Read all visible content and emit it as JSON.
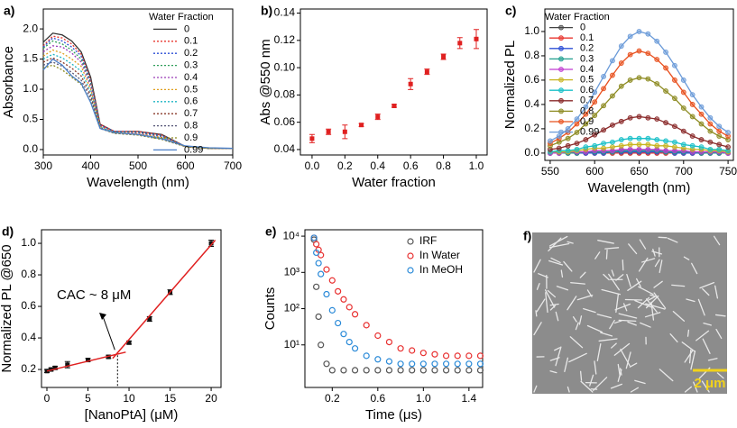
{
  "chart_data": [
    {
      "type": "line",
      "panel_label": "a)",
      "xlabel": "Wavelength (nm)",
      "ylabel": "Absorbance",
      "legend_title": "Water Fraction",
      "legend": "upper right",
      "xlim": [
        300,
        700
      ],
      "xticks": [
        300,
        400,
        500,
        600,
        700
      ],
      "ylim": [
        -0.09,
        2.33
      ],
      "yticks": [
        {
          "value": 0,
          "label": "0.0"
        },
        0.5,
        {
          "value": 1,
          "label": "1.0"
        },
        1.5,
        {
          "value": 2,
          "label": "2.0"
        }
      ],
      "x": [
        300,
        320,
        340,
        360,
        380,
        400,
        420,
        450,
        500,
        550,
        600,
        650,
        700
      ],
      "series": [
        {
          "name": "0",
          "color": "#333333",
          "dashed": false,
          "values": [
            1.78,
            1.93,
            1.9,
            1.8,
            1.62,
            1.2,
            0.42,
            0.3,
            0.3,
            0.25,
            0.05,
            0.02,
            0.02
          ]
        },
        {
          "name": "0.1",
          "color": "#e8352e",
          "dashed": true,
          "values": [
            1.72,
            1.88,
            1.85,
            1.75,
            1.58,
            1.15,
            0.42,
            0.3,
            0.3,
            0.24,
            0.05,
            0.02,
            0.02
          ]
        },
        {
          "name": "0.2",
          "color": "#2d4fd6",
          "dashed": true,
          "values": [
            1.7,
            1.85,
            1.8,
            1.7,
            1.55,
            1.12,
            0.4,
            0.3,
            0.29,
            0.23,
            0.05,
            0.02,
            0.02
          ]
        },
        {
          "name": "0.3",
          "color": "#2e9e5a",
          "dashed": true,
          "values": [
            1.68,
            1.8,
            1.75,
            1.65,
            1.5,
            1.1,
            0.4,
            0.29,
            0.28,
            0.22,
            0.05,
            0.02,
            0.02
          ]
        },
        {
          "name": "0.4",
          "color": "#9b3bb8",
          "dashed": true,
          "values": [
            1.62,
            1.72,
            1.7,
            1.6,
            1.45,
            1.05,
            0.4,
            0.28,
            0.27,
            0.21,
            0.05,
            0.02,
            0.02
          ]
        },
        {
          "name": "0.5",
          "color": "#e0a020",
          "dashed": true,
          "values": [
            1.55,
            1.65,
            1.6,
            1.5,
            1.38,
            1.0,
            0.38,
            0.28,
            0.26,
            0.2,
            0.05,
            0.02,
            0.02
          ]
        },
        {
          "name": "0.6",
          "color": "#1fb5c4",
          "dashed": true,
          "values": [
            1.5,
            1.58,
            1.52,
            1.42,
            1.3,
            0.95,
            0.37,
            0.28,
            0.25,
            0.19,
            0.05,
            0.02,
            0.02
          ]
        },
        {
          "name": "0.7",
          "color": "#8a3a2a",
          "dashed": true,
          "values": [
            1.45,
            1.52,
            1.45,
            1.35,
            1.22,
            0.9,
            0.36,
            0.27,
            0.25,
            0.18,
            0.05,
            0.02,
            0.02
          ]
        },
        {
          "name": "0.8",
          "color": "#555577",
          "dashed": true,
          "values": [
            1.4,
            1.45,
            1.38,
            1.28,
            1.15,
            0.85,
            0.35,
            0.27,
            0.24,
            0.17,
            0.05,
            0.02,
            0.02
          ]
        },
        {
          "name": "0.9",
          "color": "#8c8a20",
          "dashed": true,
          "values": [
            1.35,
            1.4,
            1.32,
            1.2,
            1.08,
            0.8,
            0.35,
            0.27,
            0.24,
            0.17,
            0.05,
            0.02,
            0.02
          ]
        },
        {
          "name": "0.99",
          "color": "#4a7fc8",
          "dashed": false,
          "values": [
            1.32,
            1.5,
            1.4,
            1.22,
            1.1,
            0.78,
            0.35,
            0.28,
            0.25,
            0.18,
            0.06,
            0.03,
            0.02
          ]
        }
      ]
    },
    {
      "type": "scatter",
      "panel_label": "b)",
      "xlabel": "Water fraction",
      "ylabel": "Abs @550 nm",
      "marker": "square",
      "xlim": [
        -0.071,
        1.066
      ],
      "xticks": [
        {
          "value": 0,
          "label": "0.0"
        },
        0.2,
        0.4,
        0.6,
        0.8,
        {
          "value": 1,
          "label": "1.0"
        }
      ],
      "ylim": [
        0.036,
        0.143
      ],
      "yticks": [
        0.04,
        0.06,
        0.08,
        {
          "value": 0.1,
          "label": "0.10"
        },
        0.12,
        0.14
      ],
      "series": [
        {
          "color": "#e02020",
          "x": [
            0,
            0.1,
            0.2,
            0.3,
            0.4,
            0.5,
            0.6,
            0.7,
            0.8,
            0.9,
            1.0
          ],
          "values": [
            0.048,
            0.053,
            0.053,
            0.058,
            0.064,
            0.072,
            0.088,
            0.097,
            0.108,
            0.118,
            0.121
          ],
          "errors": [
            0.003,
            0.002,
            0.005,
            0.001,
            0.002,
            0.001,
            0.004,
            0.002,
            0.002,
            0.004,
            0.007
          ]
        }
      ]
    },
    {
      "type": "line",
      "panel_label": "c)",
      "xlabel": "Wavelength (nm)",
      "ylabel": "Normalized PL",
      "legend_title": "Water Fraction",
      "legend": "upper left",
      "marker": "circle",
      "xlim": [
        544,
        756
      ],
      "xticks": [
        550,
        600,
        650,
        700,
        750
      ],
      "ylim": [
        -0.06,
        1.185
      ],
      "yticks": [
        {
          "value": 0,
          "label": "0.0"
        },
        0.2,
        0.4,
        0.6,
        0.8,
        {
          "value": 1,
          "label": "1.0"
        }
      ],
      "x": [
        550,
        560,
        570,
        580,
        590,
        600,
        610,
        620,
        630,
        640,
        650,
        660,
        670,
        680,
        690,
        700,
        710,
        720,
        730,
        740,
        750
      ],
      "series": [
        {
          "name": "0",
          "color": "#444444",
          "values": [
            0,
            0,
            0,
            0,
            0,
            0,
            0,
            0,
            0,
            0,
            0,
            0,
            0,
            0,
            0,
            0,
            0,
            0,
            0,
            0,
            0
          ]
        },
        {
          "name": "0.1",
          "color": "#e8352e",
          "values": [
            0,
            0,
            0,
            0,
            0,
            0,
            0,
            0,
            0,
            0,
            0,
            0,
            0,
            0,
            0,
            0,
            0,
            0,
            0,
            0,
            0
          ]
        },
        {
          "name": "0.2",
          "color": "#2d4fd6",
          "values": [
            0,
            0,
            0,
            0,
            0,
            0,
            0,
            0.01,
            0.01,
            0.01,
            0.01,
            0.01,
            0.01,
            0.01,
            0,
            0,
            0,
            0,
            0,
            0,
            0
          ]
        },
        {
          "name": "0.3",
          "color": "#1f9e8e",
          "values": [
            0,
            0,
            0,
            0,
            0.01,
            0.01,
            0.01,
            0.01,
            0.02,
            0.02,
            0.02,
            0.02,
            0.02,
            0.01,
            0.01,
            0.01,
            0.01,
            0,
            0,
            0,
            0
          ]
        },
        {
          "name": "0.4",
          "color": "#c03ad0",
          "values": [
            0,
            0,
            0.01,
            0.01,
            0.01,
            0.02,
            0.02,
            0.02,
            0.03,
            0.03,
            0.03,
            0.03,
            0.03,
            0.02,
            0.02,
            0.02,
            0.01,
            0.01,
            0.01,
            0.01,
            0
          ]
        },
        {
          "name": "0.5",
          "color": "#c7b420",
          "values": [
            0.01,
            0.01,
            0.01,
            0.02,
            0.03,
            0.04,
            0.04,
            0.05,
            0.06,
            0.07,
            0.07,
            0.07,
            0.06,
            0.06,
            0.05,
            0.04,
            0.03,
            0.03,
            0.02,
            0.02,
            0.01
          ]
        },
        {
          "name": "0.6",
          "color": "#19c0c8",
          "values": [
            0.01,
            0.02,
            0.02,
            0.03,
            0.05,
            0.06,
            0.08,
            0.09,
            0.11,
            0.12,
            0.12,
            0.12,
            0.11,
            0.1,
            0.09,
            0.07,
            0.06,
            0.05,
            0.03,
            0.03,
            0.02
          ]
        },
        {
          "name": "0.7",
          "color": "#8a2a2a",
          "values": [
            0.03,
            0.04,
            0.06,
            0.08,
            0.11,
            0.15,
            0.19,
            0.23,
            0.26,
            0.29,
            0.3,
            0.29,
            0.28,
            0.25,
            0.22,
            0.18,
            0.14,
            0.11,
            0.09,
            0.07,
            0.05
          ]
        },
        {
          "name": "0.8",
          "color": "#8c8a20",
          "values": [
            0.06,
            0.09,
            0.12,
            0.17,
            0.24,
            0.31,
            0.39,
            0.47,
            0.55,
            0.6,
            0.62,
            0.61,
            0.57,
            0.51,
            0.45,
            0.37,
            0.3,
            0.24,
            0.18,
            0.14,
            0.11
          ]
        },
        {
          "name": "0.9",
          "color": "#e8501e",
          "values": [
            0.08,
            0.12,
            0.17,
            0.24,
            0.32,
            0.42,
            0.53,
            0.64,
            0.74,
            0.81,
            0.84,
            0.82,
            0.77,
            0.7,
            0.6,
            0.5,
            0.4,
            0.32,
            0.24,
            0.18,
            0.14
          ]
        },
        {
          "name": "0.99",
          "color": "#6a9ad8",
          "values": [
            0.1,
            0.14,
            0.2,
            0.28,
            0.38,
            0.5,
            0.63,
            0.76,
            0.88,
            0.96,
            1.0,
            0.98,
            0.92,
            0.83,
            0.72,
            0.6,
            0.48,
            0.38,
            0.29,
            0.22,
            0.17
          ]
        }
      ]
    },
    {
      "type": "scatter",
      "panel_label": "d)",
      "xlabel": "[NanoPtA] (μM)",
      "ylabel": "Normalized PL @650",
      "marker": "square",
      "annotation": "CAC ~ 8 μM",
      "xlim": [
        -0.66,
        21.2
      ],
      "xticks": [
        0,
        5,
        10,
        15,
        20
      ],
      "ylim": [
        0.086,
        1.086
      ],
      "yticks": [
        0.2,
        0.4,
        0.6,
        0.8,
        {
          "value": 1,
          "label": "1.0"
        }
      ],
      "series": [
        {
          "color": "#111111",
          "x": [
            0,
            0.5,
            1,
            2.5,
            5,
            7.5,
            10,
            12.5,
            15,
            20
          ],
          "values": [
            0.19,
            0.2,
            0.21,
            0.23,
            0.26,
            0.28,
            0.37,
            0.52,
            0.69,
            1.0
          ],
          "errors": [
            0.01,
            0.01,
            0.01,
            0.02,
            0.01,
            0.01,
            0.01,
            0.015,
            0.015,
            0.02
          ]
        }
      ],
      "fit_lines": [
        {
          "color": "#e02020",
          "x": [
            0,
            9.6
          ],
          "y": [
            0.19,
            0.31
          ]
        },
        {
          "color": "#e02020",
          "x": [
            8,
            20.5
          ],
          "y": [
            0.27,
            1.02
          ]
        }
      ],
      "dropline": {
        "x": 8.6,
        "y": 0.29
      }
    },
    {
      "type": "scatter",
      "panel_label": "e)",
      "xlabel": "Time (μs)",
      "ylabel": "Counts",
      "marker": "circle",
      "open": true,
      "ylog": true,
      "legend": "upper right",
      "xlim": [
        -0.04,
        1.52
      ],
      "xticks": [
        0.2,
        0.6,
        {
          "value": 1,
          "label": "1.0"
        },
        1.4
      ],
      "ylim": [
        0.67,
        15000
      ],
      "yticks": [
        {
          "value": 10,
          "label": "10¹"
        },
        {
          "value": 100,
          "label": "10²"
        },
        {
          "value": 1000,
          "label": "10³"
        },
        {
          "value": 10000,
          "label": "10⁴"
        }
      ],
      "series": [
        {
          "name": "IRF",
          "color": "#555555",
          "x": [
            0.04,
            0.06,
            0.08,
            0.1,
            0.15,
            0.2,
            0.3,
            0.4,
            0.5,
            0.6,
            0.7,
            0.8,
            0.9,
            1.0,
            1.1,
            1.2,
            1.3,
            1.4,
            1.5
          ],
          "values": [
            8000,
            400,
            60,
            10,
            3,
            2,
            2,
            2,
            2,
            2,
            2,
            2,
            2,
            2,
            2,
            2,
            2,
            2,
            2
          ]
        },
        {
          "name": "In Water",
          "color": "#e83030",
          "x": [
            0.04,
            0.06,
            0.08,
            0.1,
            0.15,
            0.2,
            0.25,
            0.3,
            0.35,
            0.4,
            0.5,
            0.6,
            0.7,
            0.8,
            0.9,
            1.0,
            1.1,
            1.2,
            1.3,
            1.4,
            1.5
          ],
          "values": [
            9000,
            6000,
            4200,
            3000,
            1200,
            600,
            300,
            180,
            110,
            70,
            35,
            18,
            12,
            8,
            7,
            6,
            5.5,
            5,
            5,
            5,
            5
          ]
        },
        {
          "name": "In MeOH",
          "color": "#2a8ad8",
          "x": [
            0.04,
            0.06,
            0.08,
            0.1,
            0.15,
            0.2,
            0.25,
            0.3,
            0.35,
            0.4,
            0.5,
            0.6,
            0.7,
            0.8,
            0.9,
            1.0,
            1.1,
            1.2,
            1.3,
            1.4,
            1.5
          ],
          "values": [
            9000,
            3500,
            1800,
            900,
            250,
            90,
            40,
            20,
            12,
            8,
            5,
            4,
            3.5,
            3,
            3,
            3,
            3,
            3,
            3,
            3,
            3
          ]
        }
      ]
    }
  ],
  "image_panel": {
    "panel_label": "f)",
    "scale_bar": "2 μm"
  }
}
